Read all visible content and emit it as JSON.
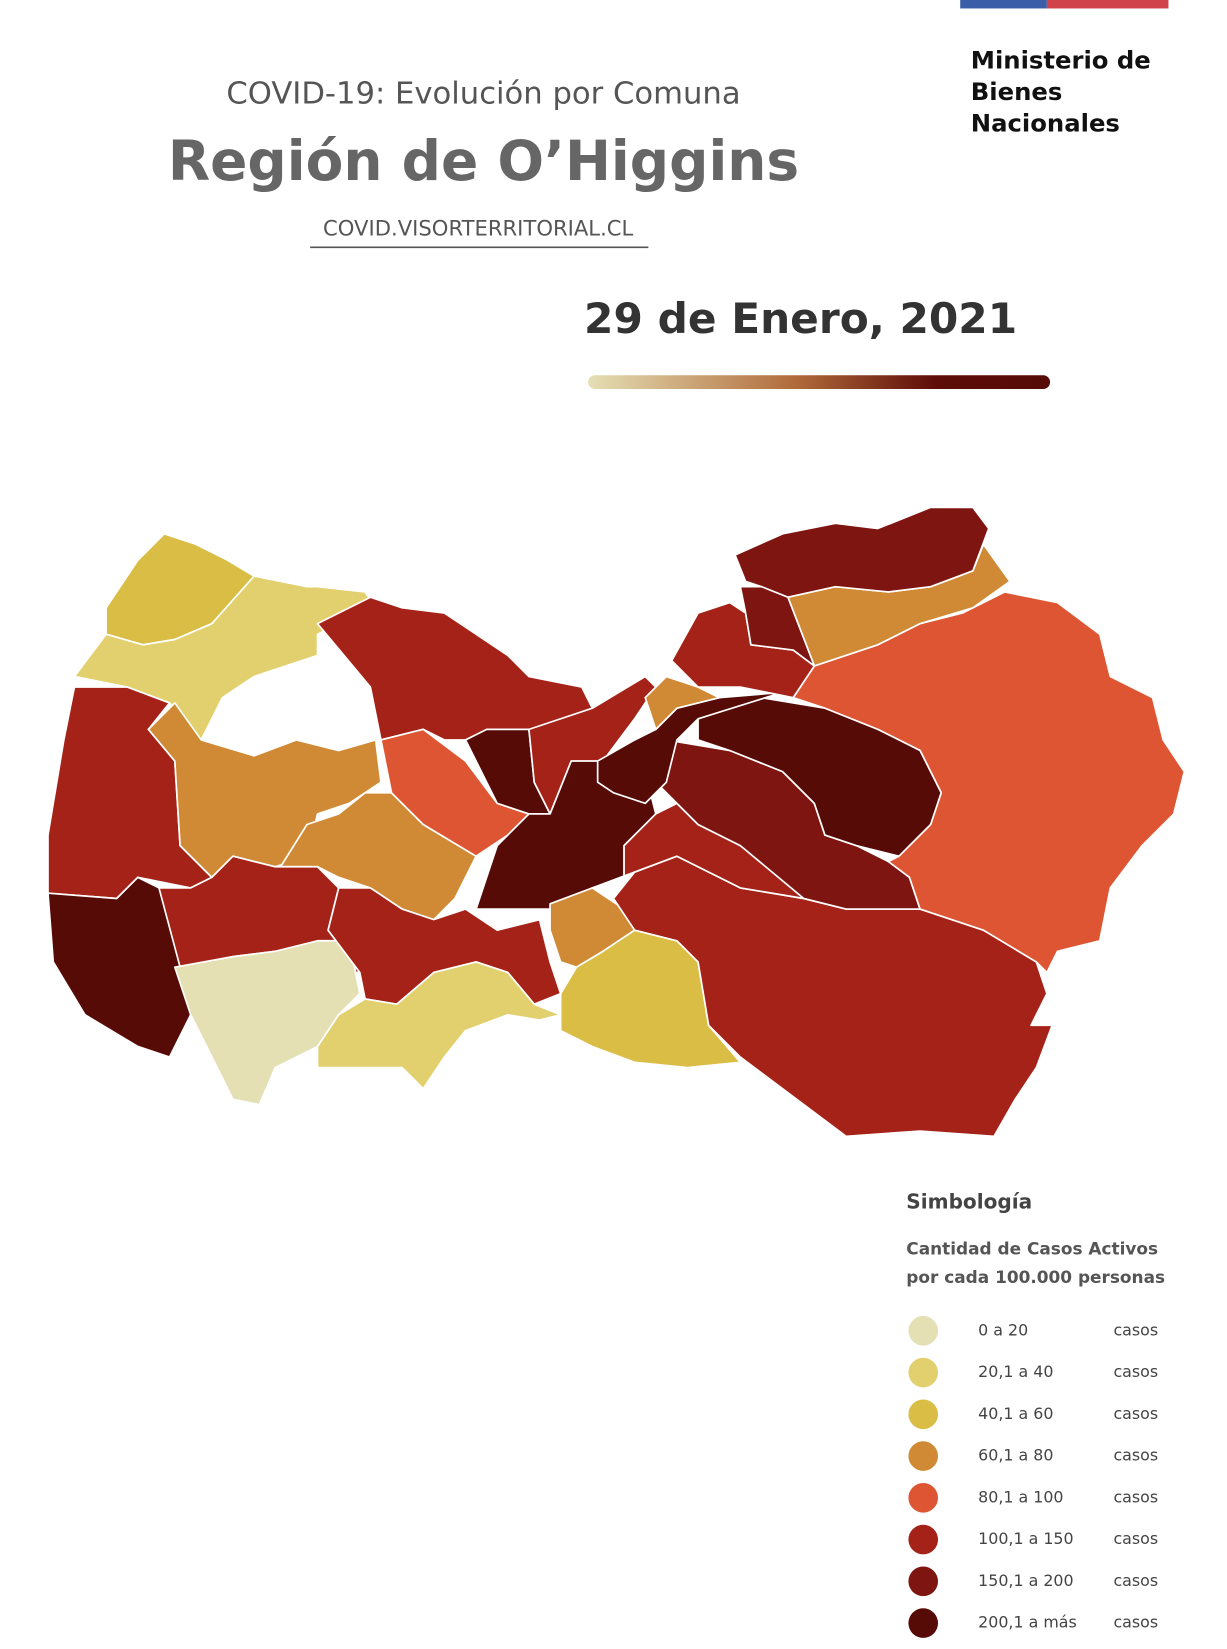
{
  "ministry": [
    "Ministerio de",
    "Bienes",
    "Nacionales"
  ],
  "header": {
    "subtitle": "COVID-19: Evolución por Comuna",
    "title": "Región de O’Higgins",
    "url": "COVID.VISORTERRITORIAL.CL"
  },
  "date": "29 de Enero, 2021",
  "legend": {
    "title": "Simbología",
    "subtitle": [
      "Cantidad de Casos Activos",
      "por cada 100.000 personas"
    ],
    "items": [
      {
        "range": "0 a 20",
        "unit": "casos",
        "color": "#e5dfb4"
      },
      {
        "range": "20,1 a 40",
        "unit": "casos",
        "color": "#e2d06e"
      },
      {
        "range": "40,1 a 60",
        "unit": "casos",
        "color": "#dabd45"
      },
      {
        "range": "60,1 a 80",
        "unit": "casos",
        "color": "#d08a35"
      },
      {
        "range": "80,1 a 100",
        "unit": "casos",
        "color": "#dd5532"
      },
      {
        "range": "100,1 a 150",
        "unit": "casos",
        "color": "#a52218"
      },
      {
        "range": "150,1 a 200",
        "unit": "casos",
        "color": "#7e1510"
      },
      {
        "range": "200,1 a más",
        "unit": "casos",
        "color": "#560b07"
      }
    ]
  }
}
